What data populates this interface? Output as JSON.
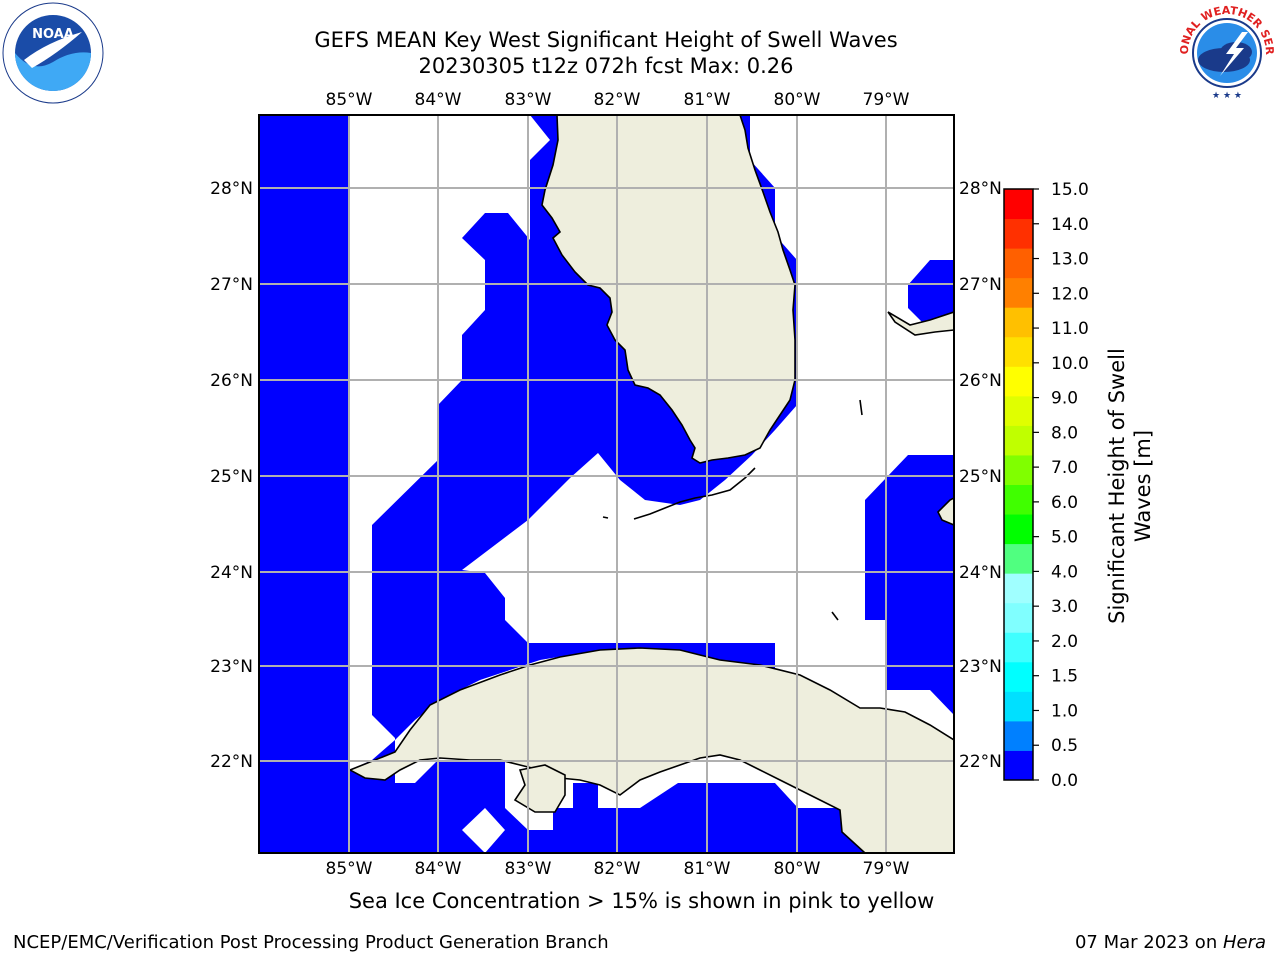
{
  "title": {
    "line1": "GEFS MEAN Key West Significant Height of Swell Waves",
    "line2": "20230305 t12z 072h fcst   Max: 0.26"
  },
  "logos": {
    "left": {
      "icon": "noaa-logo",
      "text": "NOAA"
    },
    "right": {
      "icon": "nws-logo",
      "text": "NATIONAL WEATHER SERVICE"
    }
  },
  "map": {
    "lon_labels": [
      "85°W",
      "84°W",
      "83°W",
      "82°W",
      "81°W",
      "80°W",
      "79°W"
    ],
    "lat_labels": [
      "28°N",
      "27°N",
      "26°N",
      "25°N",
      "24°N",
      "23°N",
      "22°N"
    ],
    "ocean_color": "#0000ff",
    "land_color": "#eeeedd",
    "nodata_color": "#ffffff",
    "grid_color": "#b0b0b0"
  },
  "colorbar": {
    "label_line1": "Significant Height of Swell",
    "label_line2": "Waves [m]",
    "ticks": [
      "0.0",
      "0.5",
      "1.0",
      "1.5",
      "2.0",
      "3.0",
      "4.0",
      "5.0",
      "6.0",
      "7.0",
      "8.0",
      "9.0",
      "10.0",
      "11.0",
      "12.0",
      "13.0",
      "14.0",
      "15.0"
    ],
    "colors": [
      "#0000ff",
      "#0080ff",
      "#00e0ff",
      "#00ffff",
      "#40ffff",
      "#80ffff",
      "#a0ffff",
      "#50ff80",
      "#00ff00",
      "#40ff00",
      "#80ff00",
      "#c0ff00",
      "#e0ff00",
      "#ffff00",
      "#ffe000",
      "#ffc000",
      "#ff8000",
      "#ff6000",
      "#ff3000",
      "#ff0000"
    ]
  },
  "footnote": "Sea Ice Concentration > 15% is shown in pink to yellow",
  "footer": {
    "left": "NCEP/EMC/Verification Post Processing Product Generation Branch",
    "right_date": "07 Mar 2023 on ",
    "right_host": "Hera"
  }
}
